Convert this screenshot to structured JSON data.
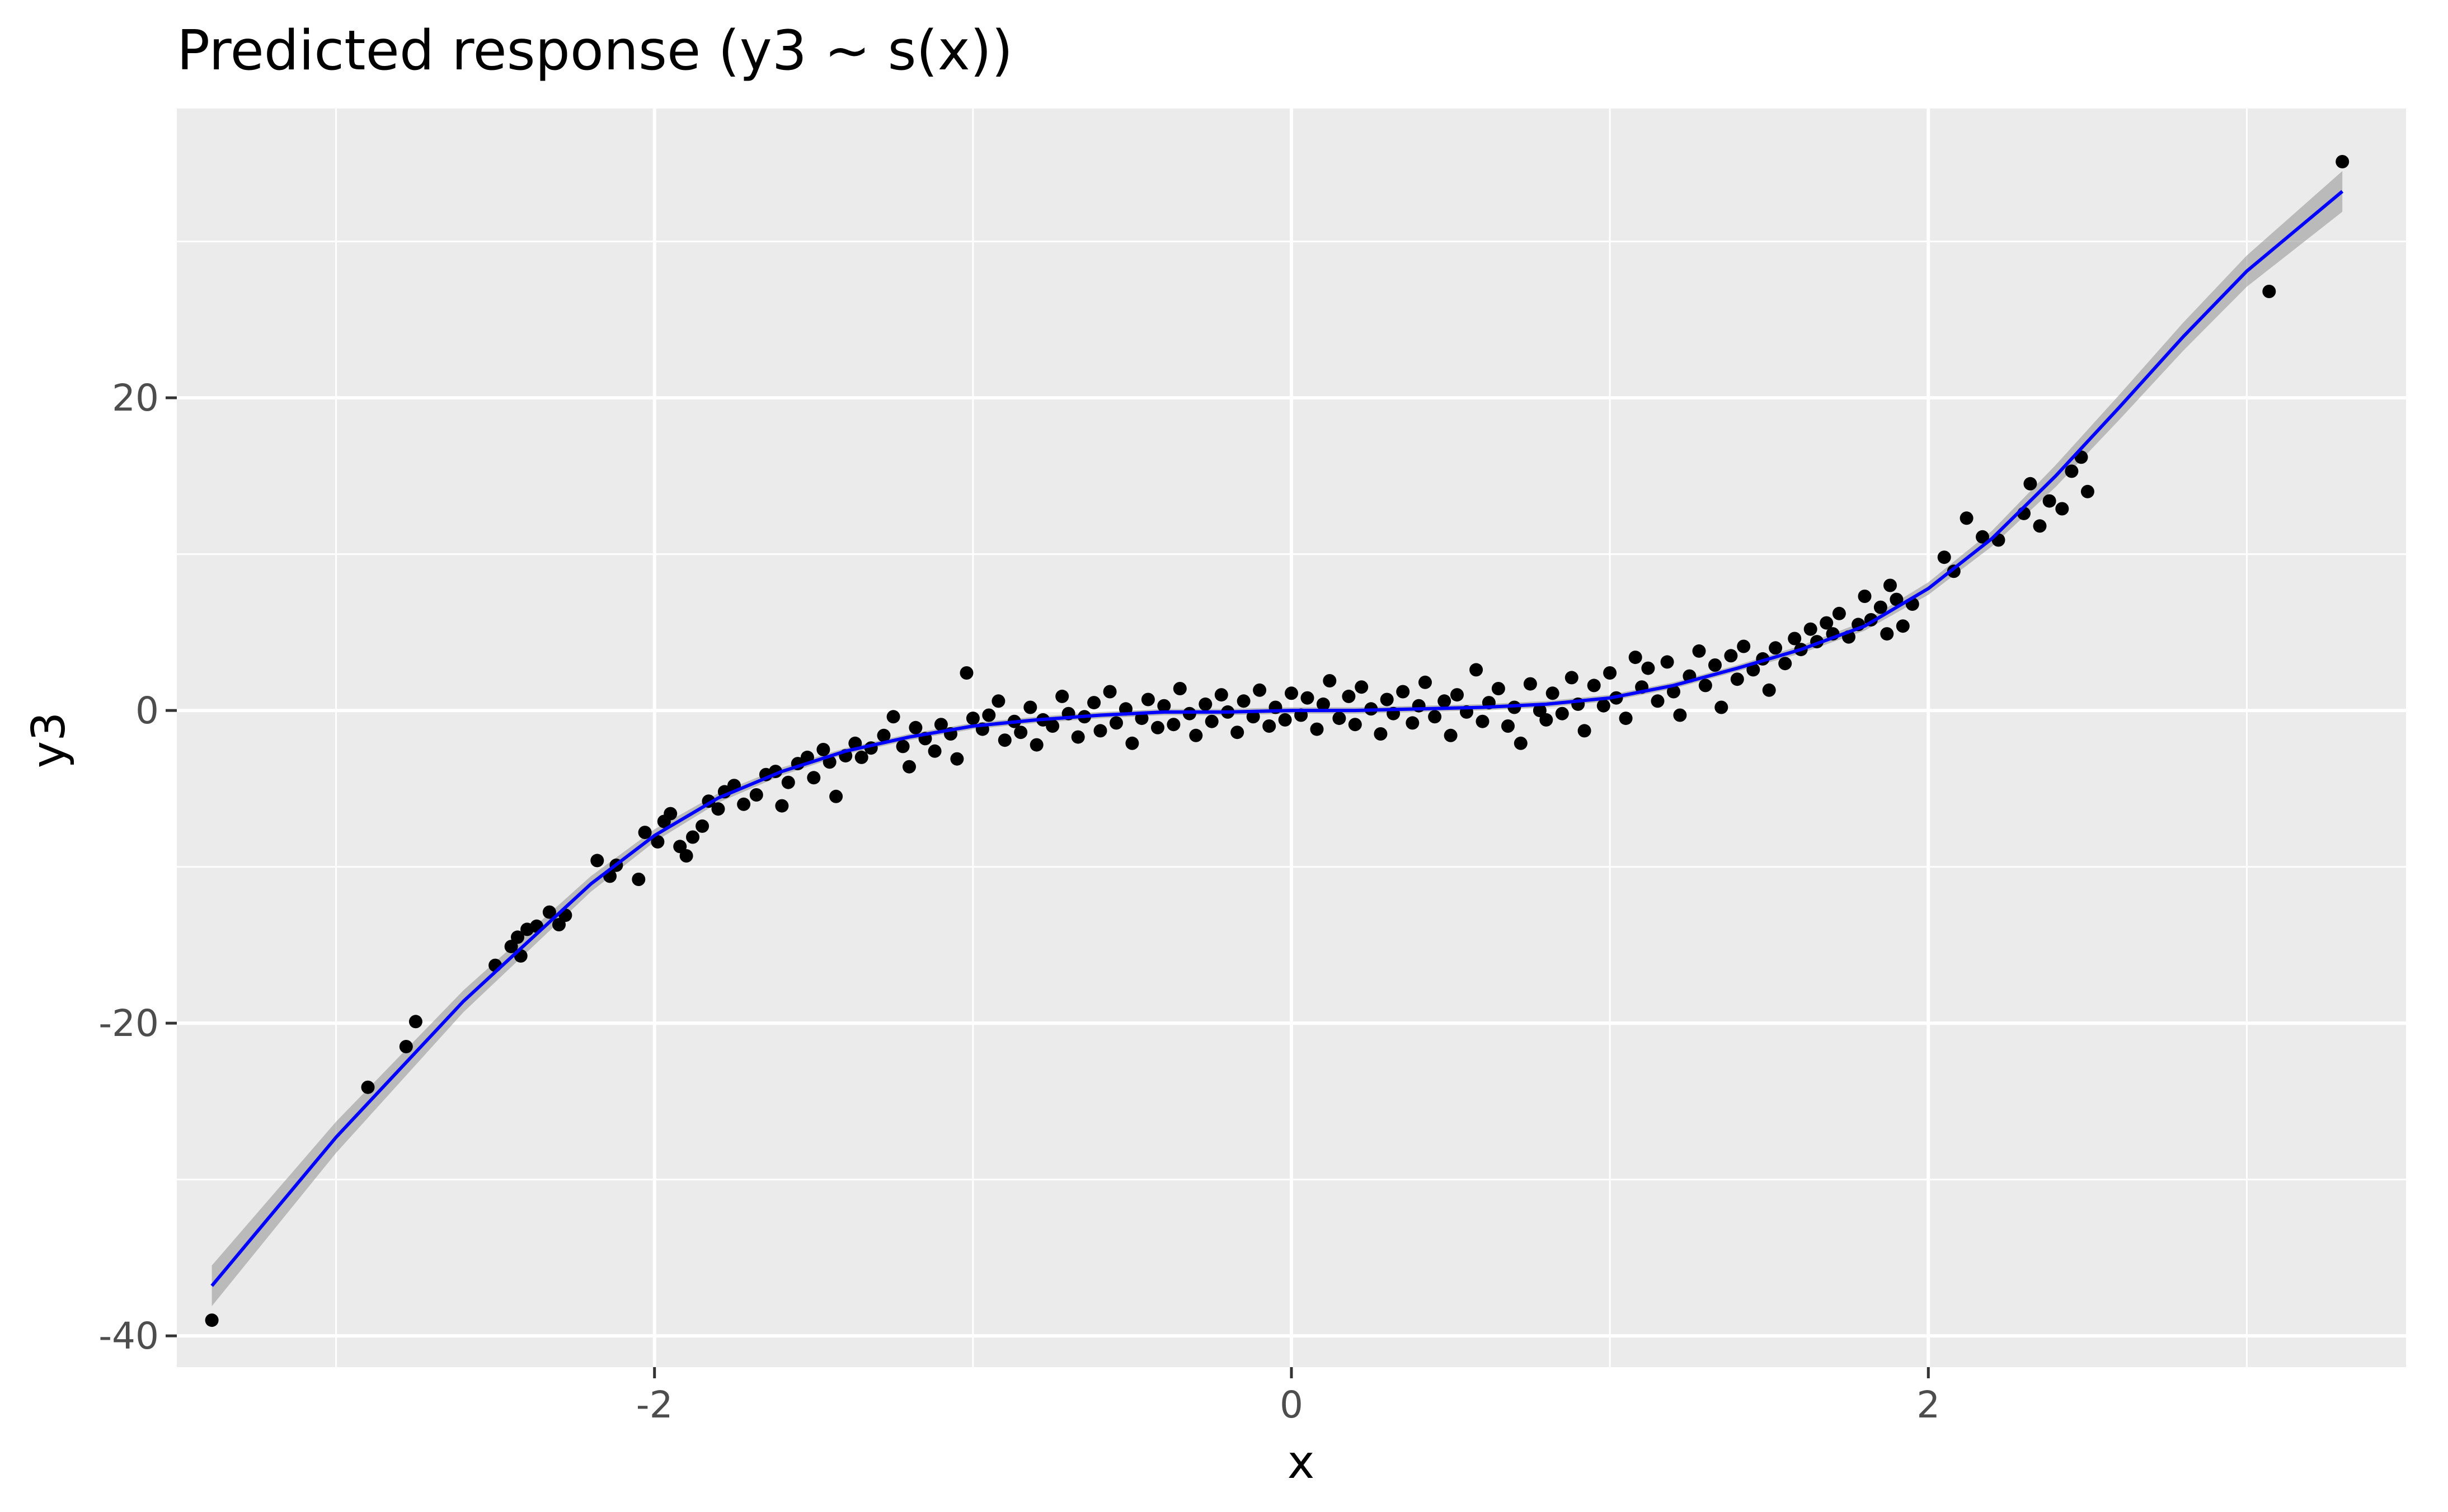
{
  "chart_data": {
    "type": "scatter",
    "title": "Predicted response (y3 ~ s(x))",
    "xlabel": "x",
    "ylabel": "y3",
    "xlim": [
      -3.5,
      3.5
    ],
    "ylim": [
      -42,
      38.5
    ],
    "x_ticks": [
      -2,
      0,
      2
    ],
    "x_tick_labels": [
      "-2",
      "0",
      "2"
    ],
    "y_ticks": [
      -40,
      -20,
      0,
      20
    ],
    "y_tick_labels": [
      "-40",
      "-20",
      "0",
      "20"
    ],
    "grid": true,
    "legend": "none",
    "colors": {
      "panel_background": "#ebebeb",
      "gridline": "#ffffff",
      "points": "#000000",
      "fit_line": "#0000ff",
      "confidence_band": "#999999"
    },
    "series": [
      {
        "kind": "points",
        "points": [
          [
            -3.39,
            -39.0
          ],
          [
            -2.9,
            -24.1
          ],
          [
            -2.78,
            -21.5
          ],
          [
            -2.75,
            -19.9
          ],
          [
            -2.5,
            -16.3
          ],
          [
            -2.45,
            -15.1
          ],
          [
            -2.43,
            -14.5
          ],
          [
            -2.42,
            -15.7
          ],
          [
            -2.4,
            -14.0
          ],
          [
            -2.37,
            -13.8
          ],
          [
            -2.33,
            -12.9
          ],
          [
            -2.3,
            -13.7
          ],
          [
            -2.28,
            -13.1
          ],
          [
            -2.18,
            -9.6
          ],
          [
            -2.14,
            -10.6
          ],
          [
            -2.12,
            -9.9
          ],
          [
            -2.05,
            -10.8
          ],
          [
            -2.03,
            -7.8
          ],
          [
            -1.99,
            -8.4
          ],
          [
            -1.97,
            -7.1
          ],
          [
            -1.95,
            -6.6
          ],
          [
            -1.92,
            -8.7
          ],
          [
            -1.9,
            -9.3
          ],
          [
            -1.88,
            -8.1
          ],
          [
            -1.85,
            -7.4
          ],
          [
            -1.83,
            -5.8
          ],
          [
            -1.8,
            -6.3
          ],
          [
            -1.78,
            -5.2
          ],
          [
            -1.75,
            -4.8
          ],
          [
            -1.72,
            -6.0
          ],
          [
            -1.68,
            -5.4
          ],
          [
            -1.65,
            -4.1
          ],
          [
            -1.62,
            -3.9
          ],
          [
            -1.6,
            -6.1
          ],
          [
            -1.58,
            -4.6
          ],
          [
            -1.55,
            -3.4
          ],
          [
            -1.52,
            -3.0
          ],
          [
            -1.5,
            -4.3
          ],
          [
            -1.47,
            -2.5
          ],
          [
            -1.45,
            -3.3
          ],
          [
            -1.43,
            -5.5
          ],
          [
            -1.4,
            -2.9
          ],
          [
            -1.37,
            -2.1
          ],
          [
            -1.35,
            -3.0
          ],
          [
            -1.32,
            -2.4
          ],
          [
            -1.28,
            -1.6
          ],
          [
            -1.25,
            -0.4
          ],
          [
            -1.22,
            -2.3
          ],
          [
            -1.2,
            -3.6
          ],
          [
            -1.18,
            -1.1
          ],
          [
            -1.15,
            -1.8
          ],
          [
            -1.12,
            -2.6
          ],
          [
            -1.1,
            -0.9
          ],
          [
            -1.07,
            -1.5
          ],
          [
            -1.05,
            -3.1
          ],
          [
            -1.02,
            2.4
          ],
          [
            -1.0,
            -0.5
          ],
          [
            -0.97,
            -1.2
          ],
          [
            -0.95,
            -0.3
          ],
          [
            -0.92,
            0.6
          ],
          [
            -0.9,
            -1.9
          ],
          [
            -0.87,
            -0.7
          ],
          [
            -0.85,
            -1.4
          ],
          [
            -0.82,
            0.2
          ],
          [
            -0.8,
            -2.2
          ],
          [
            -0.78,
            -0.6
          ],
          [
            -0.75,
            -1.0
          ],
          [
            -0.72,
            0.9
          ],
          [
            -0.7,
            -0.2
          ],
          [
            -0.67,
            -1.7
          ],
          [
            -0.65,
            -0.4
          ],
          [
            -0.62,
            0.5
          ],
          [
            -0.6,
            -1.3
          ],
          [
            -0.57,
            1.2
          ],
          [
            -0.55,
            -0.8
          ],
          [
            -0.52,
            0.1
          ],
          [
            -0.5,
            -2.1
          ],
          [
            -0.47,
            -0.5
          ],
          [
            -0.45,
            0.7
          ],
          [
            -0.42,
            -1.1
          ],
          [
            -0.4,
            0.3
          ],
          [
            -0.37,
            -0.9
          ],
          [
            -0.35,
            1.4
          ],
          [
            -0.32,
            -0.2
          ],
          [
            -0.3,
            -1.6
          ],
          [
            -0.27,
            0.4
          ],
          [
            -0.25,
            -0.7
          ],
          [
            -0.22,
            1.0
          ],
          [
            -0.2,
            -0.1
          ],
          [
            -0.17,
            -1.4
          ],
          [
            -0.15,
            0.6
          ],
          [
            -0.12,
            -0.4
          ],
          [
            -0.1,
            1.3
          ],
          [
            -0.07,
            -1.0
          ],
          [
            -0.05,
            0.2
          ],
          [
            -0.02,
            -0.6
          ],
          [
            0.0,
            1.1
          ],
          [
            0.03,
            -0.3
          ],
          [
            0.05,
            0.8
          ],
          [
            0.08,
            -1.2
          ],
          [
            0.1,
            0.4
          ],
          [
            0.12,
            1.9
          ],
          [
            0.15,
            -0.5
          ],
          [
            0.18,
            0.9
          ],
          [
            0.2,
            -0.9
          ],
          [
            0.22,
            1.5
          ],
          [
            0.25,
            0.1
          ],
          [
            0.28,
            -1.5
          ],
          [
            0.3,
            0.7
          ],
          [
            0.32,
            -0.2
          ],
          [
            0.35,
            1.2
          ],
          [
            0.38,
            -0.8
          ],
          [
            0.4,
            0.3
          ],
          [
            0.42,
            1.8
          ],
          [
            0.45,
            -0.4
          ],
          [
            0.48,
            0.6
          ],
          [
            0.5,
            -1.6
          ],
          [
            0.52,
            1.0
          ],
          [
            0.55,
            -0.1
          ],
          [
            0.58,
            2.6
          ],
          [
            0.6,
            -0.7
          ],
          [
            0.62,
            0.5
          ],
          [
            0.65,
            1.4
          ],
          [
            0.68,
            -1.0
          ],
          [
            0.7,
            0.2
          ],
          [
            0.72,
            -2.1
          ],
          [
            0.75,
            1.7
          ],
          [
            0.78,
            0.0
          ],
          [
            0.8,
            -0.6
          ],
          [
            0.82,
            1.1
          ],
          [
            0.85,
            -0.2
          ],
          [
            0.88,
            2.1
          ],
          [
            0.9,
            0.4
          ],
          [
            0.92,
            -1.3
          ],
          [
            0.95,
            1.6
          ],
          [
            0.98,
            0.3
          ],
          [
            1.0,
            2.4
          ],
          [
            1.02,
            0.8
          ],
          [
            1.05,
            -0.5
          ],
          [
            1.08,
            3.4
          ],
          [
            1.1,
            1.5
          ],
          [
            1.12,
            2.7
          ],
          [
            1.15,
            0.6
          ],
          [
            1.18,
            3.1
          ],
          [
            1.2,
            1.2
          ],
          [
            1.22,
            -0.3
          ],
          [
            1.25,
            2.2
          ],
          [
            1.28,
            3.8
          ],
          [
            1.3,
            1.6
          ],
          [
            1.33,
            2.9
          ],
          [
            1.35,
            0.2
          ],
          [
            1.38,
            3.5
          ],
          [
            1.4,
            2.0
          ],
          [
            1.42,
            4.1
          ],
          [
            1.45,
            2.6
          ],
          [
            1.48,
            3.3
          ],
          [
            1.5,
            1.3
          ],
          [
            1.52,
            4.0
          ],
          [
            1.55,
            3.0
          ],
          [
            1.58,
            4.6
          ],
          [
            1.6,
            3.9
          ],
          [
            1.63,
            5.2
          ],
          [
            1.65,
            4.4
          ],
          [
            1.68,
            5.6
          ],
          [
            1.7,
            4.9
          ],
          [
            1.72,
            6.2
          ],
          [
            1.75,
            4.7
          ],
          [
            1.78,
            5.5
          ],
          [
            1.8,
            7.3
          ],
          [
            1.82,
            5.8
          ],
          [
            1.85,
            6.6
          ],
          [
            1.87,
            4.9
          ],
          [
            1.88,
            8.0
          ],
          [
            1.9,
            7.1
          ],
          [
            1.92,
            5.4
          ],
          [
            1.95,
            6.8
          ],
          [
            2.05,
            9.8
          ],
          [
            2.08,
            8.9
          ],
          [
            2.12,
            12.3
          ],
          [
            2.17,
            11.1
          ],
          [
            2.22,
            10.9
          ],
          [
            2.3,
            12.6
          ],
          [
            2.32,
            14.5
          ],
          [
            2.35,
            11.8
          ],
          [
            2.38,
            13.4
          ],
          [
            2.42,
            12.9
          ],
          [
            2.45,
            15.3
          ],
          [
            2.48,
            16.2
          ],
          [
            2.5,
            14.0
          ],
          [
            3.07,
            26.8
          ],
          [
            3.3,
            35.1
          ]
        ]
      },
      {
        "kind": "smooth",
        "x": [
          -3.39,
          -3.0,
          -2.6,
          -2.2,
          -2.0,
          -1.8,
          -1.6,
          -1.4,
          -1.2,
          -1.0,
          -0.8,
          -0.6,
          -0.4,
          -0.2,
          0.0,
          0.2,
          0.4,
          0.6,
          0.8,
          1.0,
          1.2,
          1.4,
          1.6,
          1.8,
          2.0,
          2.2,
          2.4,
          2.6,
          2.8,
          3.0,
          3.3
        ],
        "y": [
          -36.8,
          -27.3,
          -18.6,
          -11.1,
          -8.0,
          -5.6,
          -3.9,
          -2.6,
          -1.7,
          -1.0,
          -0.6,
          -0.3,
          -0.1,
          -0.1,
          0.0,
          0.0,
          0.1,
          0.2,
          0.4,
          0.8,
          1.6,
          2.7,
          3.9,
          5.4,
          7.8,
          11.0,
          15.0,
          19.4,
          23.9,
          28.1,
          33.2
        ],
        "se": [
          1.3,
          1.0,
          0.7,
          0.5,
          0.4,
          0.3,
          0.25,
          0.2,
          0.2,
          0.2,
          0.2,
          0.2,
          0.2,
          0.2,
          0.2,
          0.2,
          0.2,
          0.2,
          0.2,
          0.2,
          0.2,
          0.2,
          0.25,
          0.3,
          0.4,
          0.5,
          0.7,
          0.8,
          0.9,
          1.0,
          1.3
        ]
      }
    ]
  }
}
